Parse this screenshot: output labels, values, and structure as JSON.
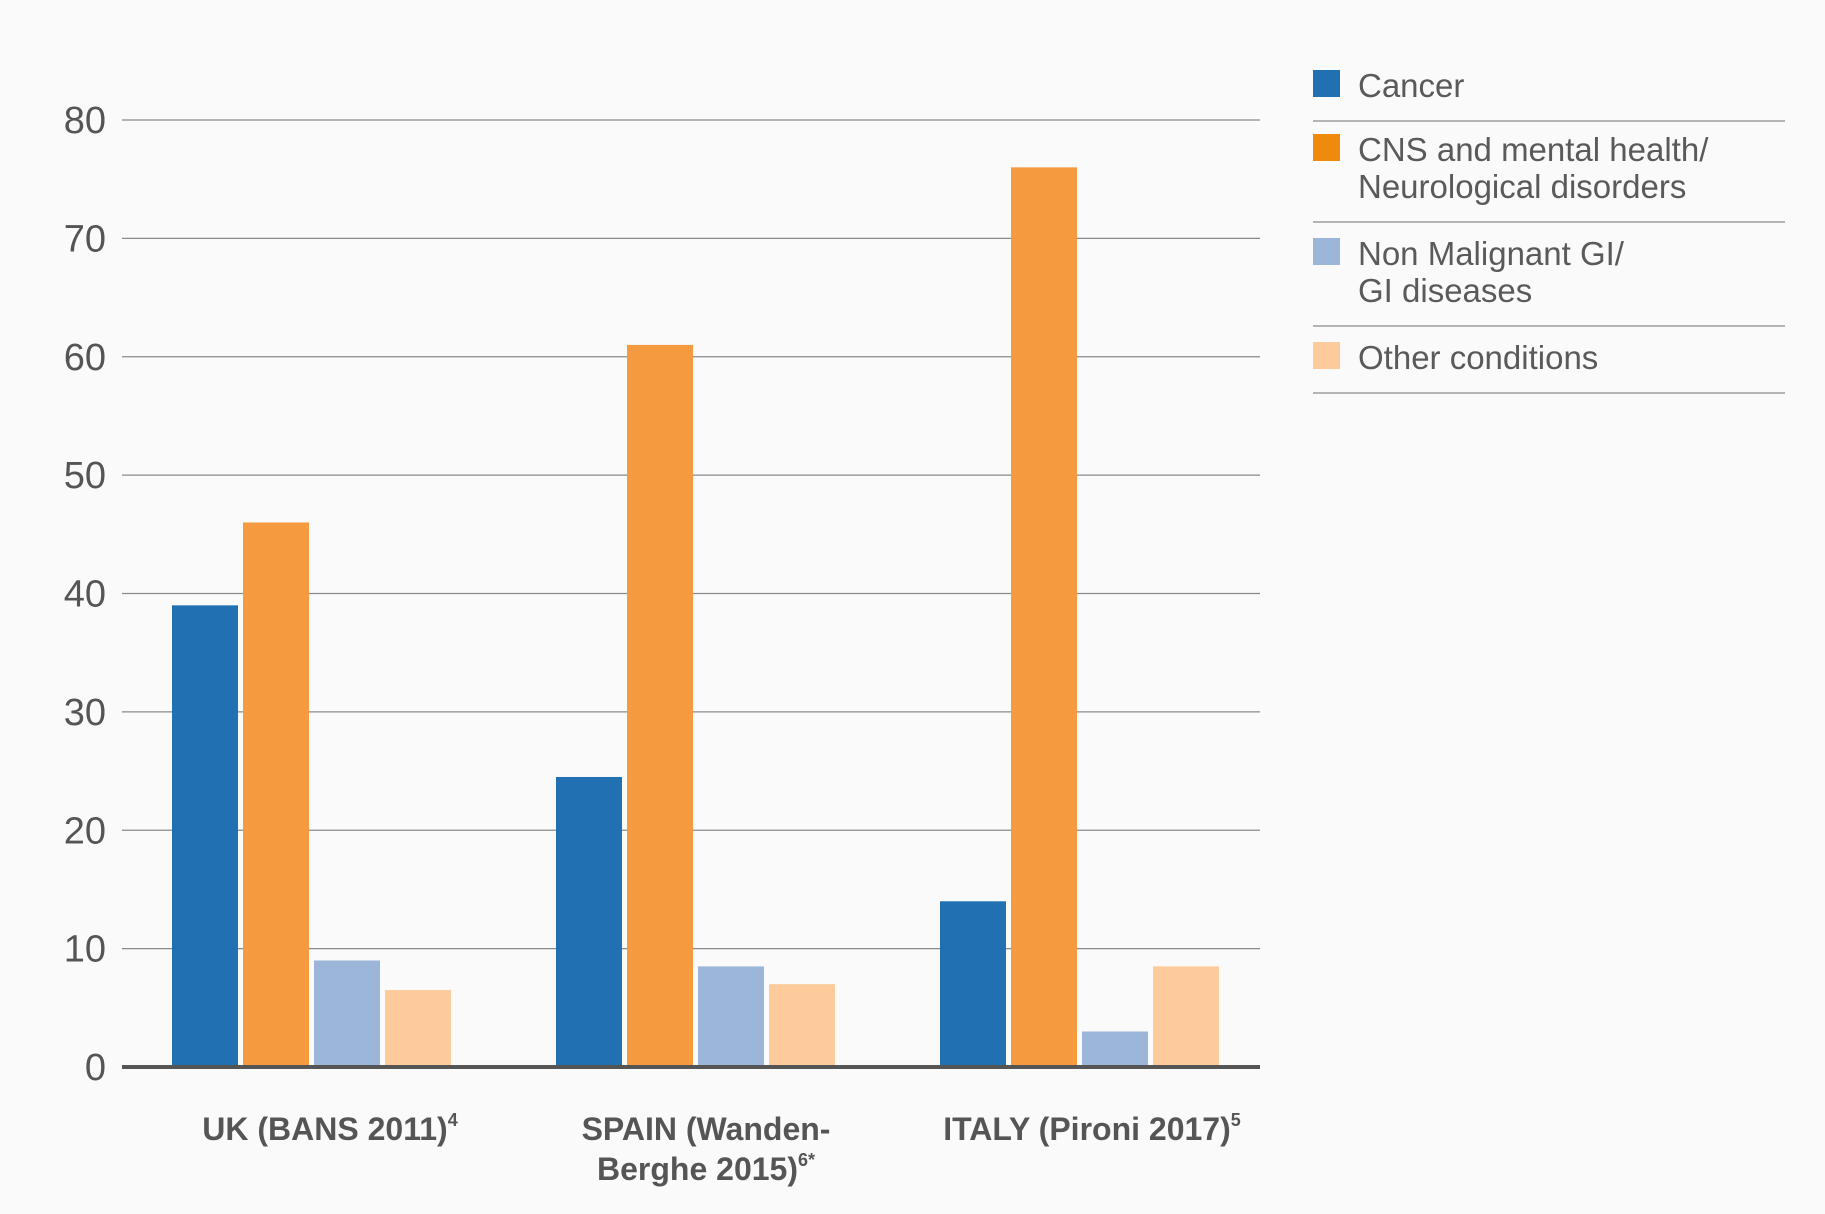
{
  "chart_data": {
    "type": "bar",
    "categories": [
      {
        "lines": [
          "UK (BANS 2011)"
        ],
        "sup": "4"
      },
      {
        "lines": [
          "SPAIN (Wanden-",
          "Berghe 2015)"
        ],
        "sup": "6*"
      },
      {
        "lines": [
          "ITALY (Pironi 2017)"
        ],
        "sup": "5"
      }
    ],
    "series": [
      {
        "name": "Cancer",
        "values": [
          39,
          24.5,
          14
        ],
        "color": "#2171b2"
      },
      {
        "name": "CNS and mental health/\nNeurological disorders",
        "values": [
          46,
          61,
          76
        ],
        "color": "#f59a3e"
      },
      {
        "name": "Non Malignant GI/\nGI diseases",
        "values": [
          9,
          8.5,
          3
        ],
        "color": "#9cb6d9"
      },
      {
        "name": "Other conditions",
        "values": [
          6.5,
          7,
          8.5
        ],
        "color": "#fdcb9b"
      }
    ],
    "legend_series": [
      {
        "lines": [
          "Cancer"
        ],
        "color": "#2171b2"
      },
      {
        "lines": [
          "CNS and mental health/",
          "Neurological disorders"
        ],
        "color": "#f08a0c"
      },
      {
        "lines": [
          "Non Malignant GI/",
          "GI diseases"
        ],
        "color": "#9cb6d9"
      },
      {
        "lines": [
          "Other conditions"
        ],
        "color": "#fdcb9b"
      }
    ],
    "yticks": [
      "0",
      "10",
      "20",
      "30",
      "40",
      "50",
      "60",
      "70",
      "80"
    ],
    "ylim": [
      0,
      80
    ],
    "grid": true,
    "legend_position": "right",
    "title": "",
    "xlabel": "",
    "ylabel": ""
  }
}
